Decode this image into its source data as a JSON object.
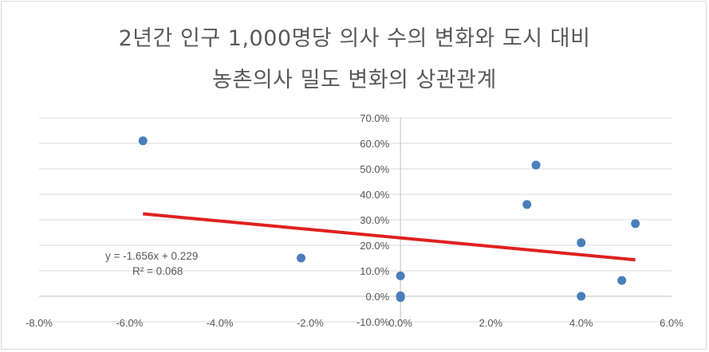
{
  "chart_data": {
    "type": "scatter",
    "title_line1": "2년간 인구 1,000명당 의사 수의 변화와 도시 대비",
    "title_line2": "농촌의사 밀도 변화의 상관관계",
    "xlim": [
      -0.08,
      0.06
    ],
    "ylim": [
      -0.1,
      0.7
    ],
    "x_ticks": [
      -0.08,
      -0.06,
      -0.04,
      -0.02,
      0.0,
      0.02,
      0.04,
      0.06
    ],
    "x_tick_labels": [
      "-8.0%",
      "-6.0%",
      "-4.0%",
      "-2.0%",
      "0.0%",
      "2.0%",
      "4.0%",
      "6.0%"
    ],
    "y_ticks": [
      -0.1,
      0.0,
      0.1,
      0.2,
      0.3,
      0.4,
      0.5,
      0.6,
      0.7
    ],
    "y_tick_labels": [
      "-10.0%",
      "0.0%",
      "10.0%",
      "20.0%",
      "30.0%",
      "40.0%",
      "50.0%",
      "60.0%",
      "70.0%"
    ],
    "grid": "horizontal",
    "points": [
      {
        "x": -0.057,
        "y": 0.61
      },
      {
        "x": -0.022,
        "y": 0.15
      },
      {
        "x": 0.0,
        "y": 0.08
      },
      {
        "x": 0.0,
        "y": 0.002
      },
      {
        "x": 0.0,
        "y": -0.005
      },
      {
        "x": 0.028,
        "y": 0.36
      },
      {
        "x": 0.03,
        "y": 0.515
      },
      {
        "x": 0.04,
        "y": 0.21
      },
      {
        "x": 0.04,
        "y": 0.0
      },
      {
        "x": 0.049,
        "y": 0.062
      },
      {
        "x": 0.052,
        "y": 0.285
      }
    ],
    "trendline": {
      "slope": -1.656,
      "intercept": 0.229,
      "x_range": [
        -0.057,
        0.052
      ],
      "equation_label": "y = -1.656x + 0.229",
      "r2_label": "R² = 0.068"
    },
    "colors": {
      "points": "#4a7ebb",
      "trendline": "#e02020",
      "grid": "#d9d9d9",
      "axis": "#bfbfbf",
      "text": "#595959"
    }
  }
}
